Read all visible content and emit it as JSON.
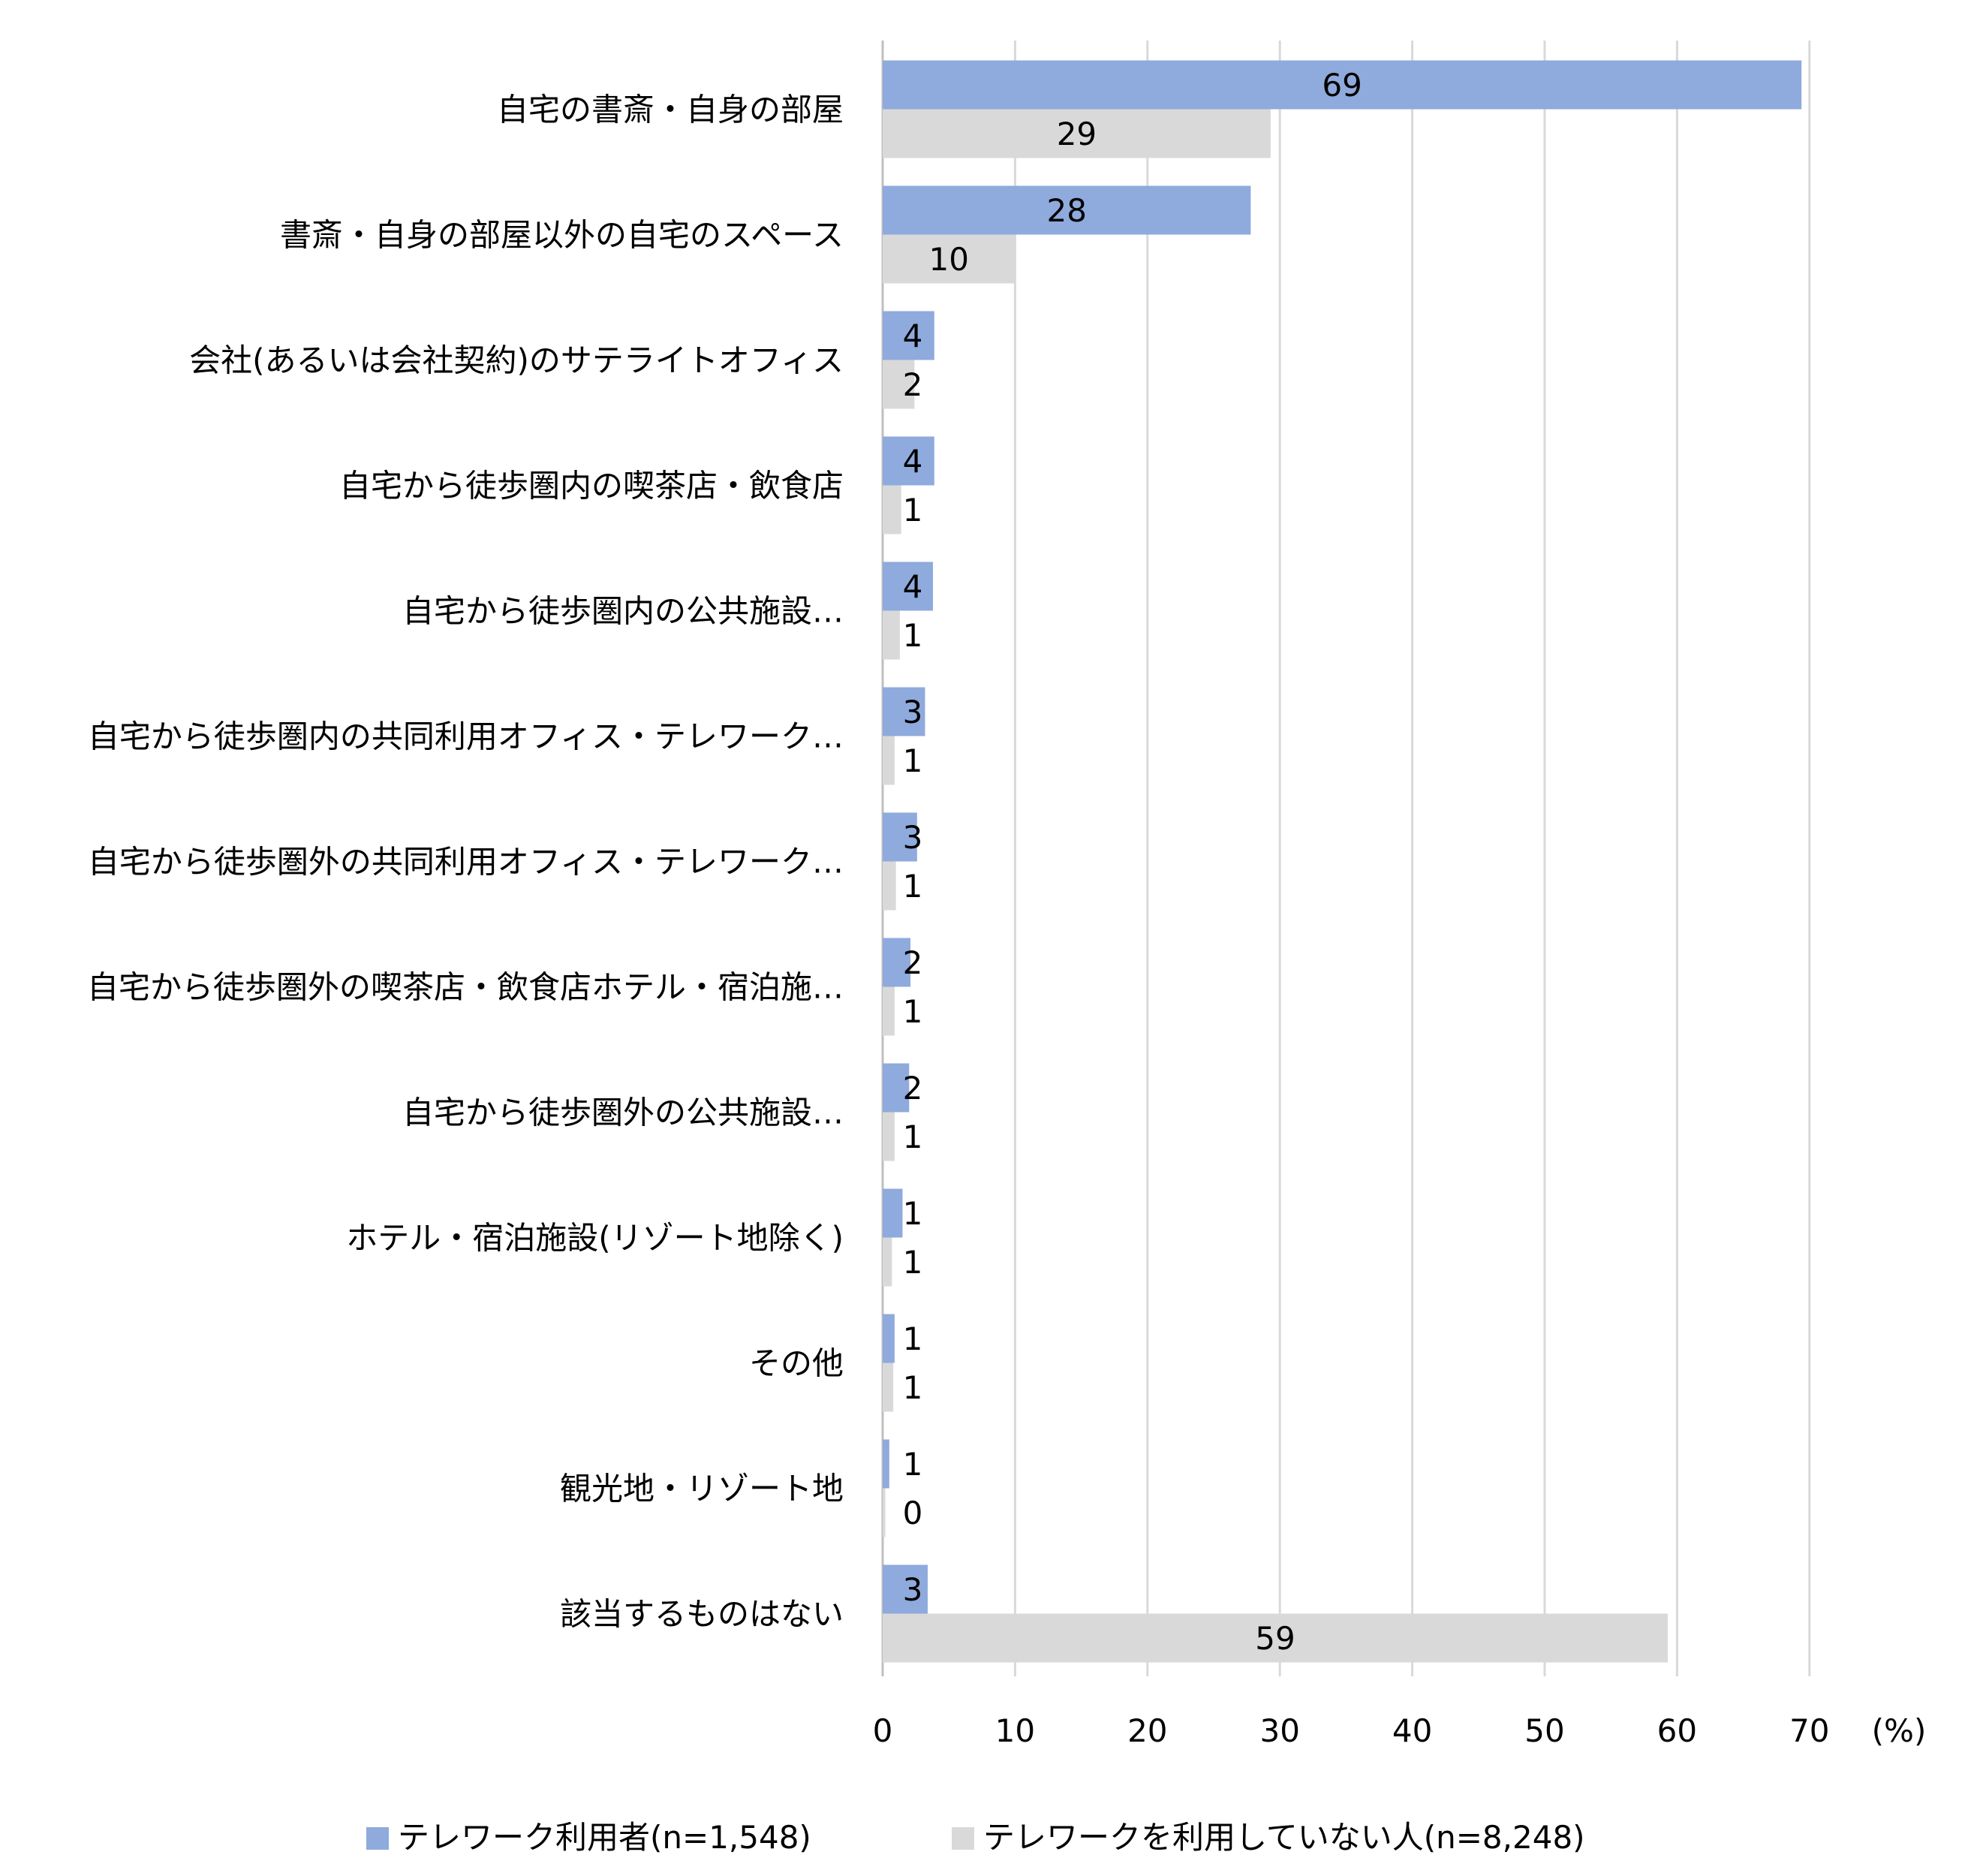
{
  "chart_data": {
    "type": "bar",
    "orientation": "horizontal",
    "title": "",
    "xlabel": "",
    "ylabel": "",
    "unit_label": "(%)",
    "xlim": [
      0,
      70
    ],
    "xticks": [
      "0",
      "10",
      "20",
      "30",
      "40",
      "50",
      "60",
      "70"
    ],
    "grid": true,
    "legend_position": "bottom",
    "categories": [
      "自宅の書斎・自身の部屋",
      "書斎・自身の部屋以外の自宅のスペース",
      "会社(あるいは会社契約)のサテライトオフィス",
      "自宅から徒歩圏内の喫茶店・飲食店",
      "自宅から徒歩圏内の公共施設…",
      "自宅から徒歩圏内の共同利用オフィス・テレワーク…",
      "自宅から徒歩圏外の共同利用オフィス・テレワーク…",
      "自宅から徒歩圏外の喫茶店・飲食店ホテル・宿泊施…",
      "自宅から徒歩圏外の公共施設…",
      "ホテル・宿泊施設(リゾート地除く)",
      "その他",
      "観光地・リゾート地",
      "該当するものはない"
    ],
    "series": [
      {
        "name": "テレワーク利用者(n=1,548)",
        "color": "#8faadc",
        "values": [
          69.4,
          27.8,
          3.9,
          3.9,
          3.8,
          3.2,
          2.6,
          2.1,
          2.0,
          1.5,
          0.9,
          0.5,
          3.4
        ],
        "labels": [
          "69",
          "28",
          "4",
          "4",
          "4",
          "3",
          "3",
          "2",
          "2",
          "1",
          "1",
          "1",
          "3"
        ]
      },
      {
        "name": "テレワークを利用していない人(n=8,248)",
        "color": "#d9d9d9",
        "values": [
          29.3,
          10.0,
          2.4,
          1.4,
          1.3,
          0.9,
          1.0,
          0.9,
          0.9,
          0.7,
          0.8,
          0.2,
          59.3
        ],
        "labels": [
          "29",
          "10",
          "2",
          "1",
          "1",
          "1",
          "1",
          "1",
          "1",
          "1",
          "1",
          "0",
          "59"
        ]
      }
    ]
  }
}
